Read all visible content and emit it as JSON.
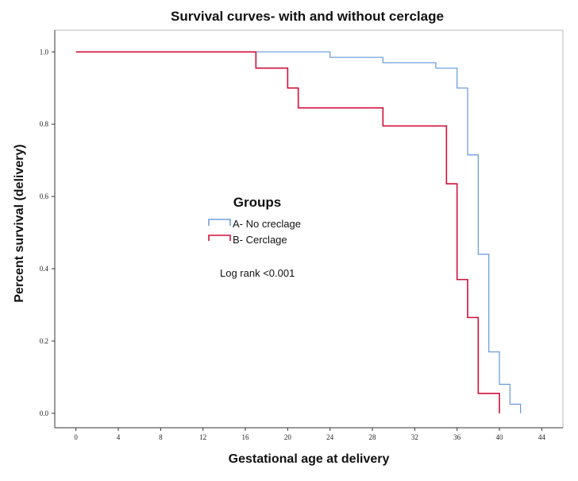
{
  "chart_data": {
    "type": "line",
    "subtype": "kaplan-meier step",
    "title": "Survival curves- with and without cerclage",
    "xlabel": "Gestational age at delivery",
    "ylabel": "Percent survival (delivery)",
    "xlim": [
      -2,
      46
    ],
    "ylim": [
      -0.04,
      1.06
    ],
    "x_ticks": [
      0,
      4,
      8,
      12,
      16,
      20,
      24,
      28,
      32,
      36,
      40,
      44
    ],
    "y_ticks": [
      0.0,
      0.2,
      0.4,
      0.6,
      0.8,
      1.0
    ],
    "y_tick_labels": [
      "0.0",
      "0.2",
      "0.4",
      "0.6",
      "0.8",
      "1.0"
    ],
    "grid": false,
    "legend": {
      "title": "Groups",
      "placement": "center-left"
    },
    "annotation": "Log rank <0.001",
    "series": [
      {
        "name": "A- No creclage",
        "color": "#6fa0dc",
        "steps": [
          [
            0,
            1.0
          ],
          [
            24,
            0.985
          ],
          [
            29,
            0.97
          ],
          [
            34,
            0.955
          ],
          [
            36,
            0.9
          ],
          [
            37,
            0.715
          ],
          [
            38,
            0.44
          ],
          [
            39,
            0.17
          ],
          [
            40,
            0.08
          ],
          [
            41,
            0.025
          ],
          [
            42,
            0.0
          ]
        ]
      },
      {
        "name": "B- Cerclage",
        "color": "#d0103a",
        "steps": [
          [
            0,
            1.0
          ],
          [
            17,
            0.955
          ],
          [
            20,
            0.9
          ],
          [
            21,
            0.845
          ],
          [
            29,
            0.795
          ],
          [
            35,
            0.635
          ],
          [
            36,
            0.37
          ],
          [
            37,
            0.265
          ],
          [
            38,
            0.055
          ],
          [
            40,
            0.0
          ]
        ]
      }
    ]
  }
}
